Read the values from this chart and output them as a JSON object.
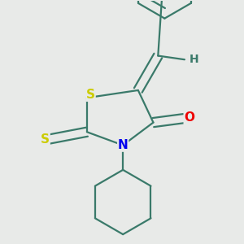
{
  "background_color": "#e8eae8",
  "bond_color": "#3a7a6a",
  "line_width": 1.6,
  "atom_colors": {
    "S": "#cccc00",
    "N": "#0000ee",
    "O": "#ee0000",
    "H": "#3a7a6a",
    "C": "#3a7a6a"
  },
  "font_size_atoms": 11,
  "font_size_h": 10
}
